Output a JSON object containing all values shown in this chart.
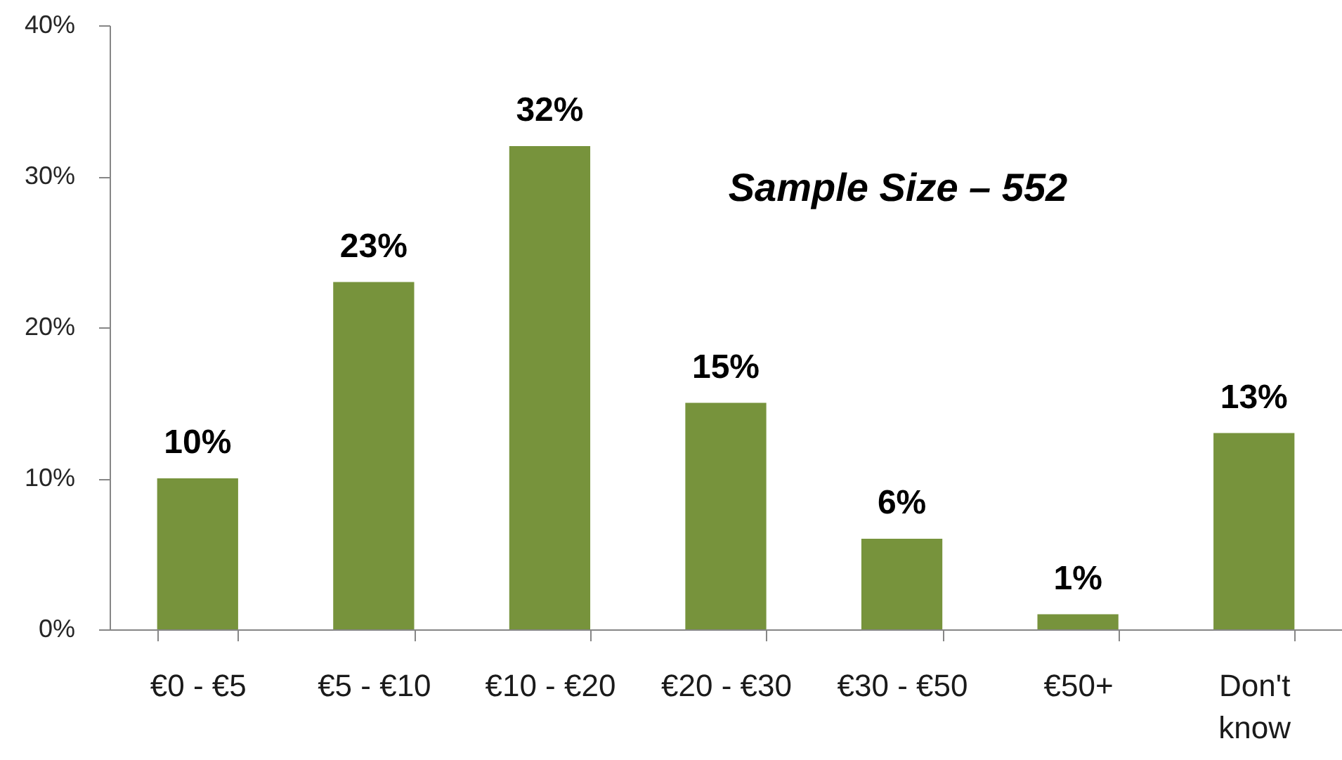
{
  "chart_data": {
    "type": "bar",
    "categories": [
      "€0 - €5",
      "€5 - €10",
      "€10 - €20",
      "€20 - €30",
      "€30 - €50",
      "€50+",
      "Don't know"
    ],
    "values": [
      10,
      23,
      32,
      15,
      6,
      1,
      13
    ],
    "value_labels": [
      "10%",
      "23%",
      "32%",
      "15%",
      "6%",
      "1%",
      "13%"
    ],
    "color": "#77933c",
    "ylim": [
      0,
      40
    ],
    "yticks": [
      {
        "value": 0,
        "label": "0%"
      },
      {
        "value": 10,
        "label": "10%"
      },
      {
        "value": 20,
        "label": "20%"
      },
      {
        "value": 30,
        "label": "30%"
      },
      {
        "value": 40,
        "label": "40%"
      }
    ],
    "annotations": [
      "Sample Size – 552"
    ]
  }
}
